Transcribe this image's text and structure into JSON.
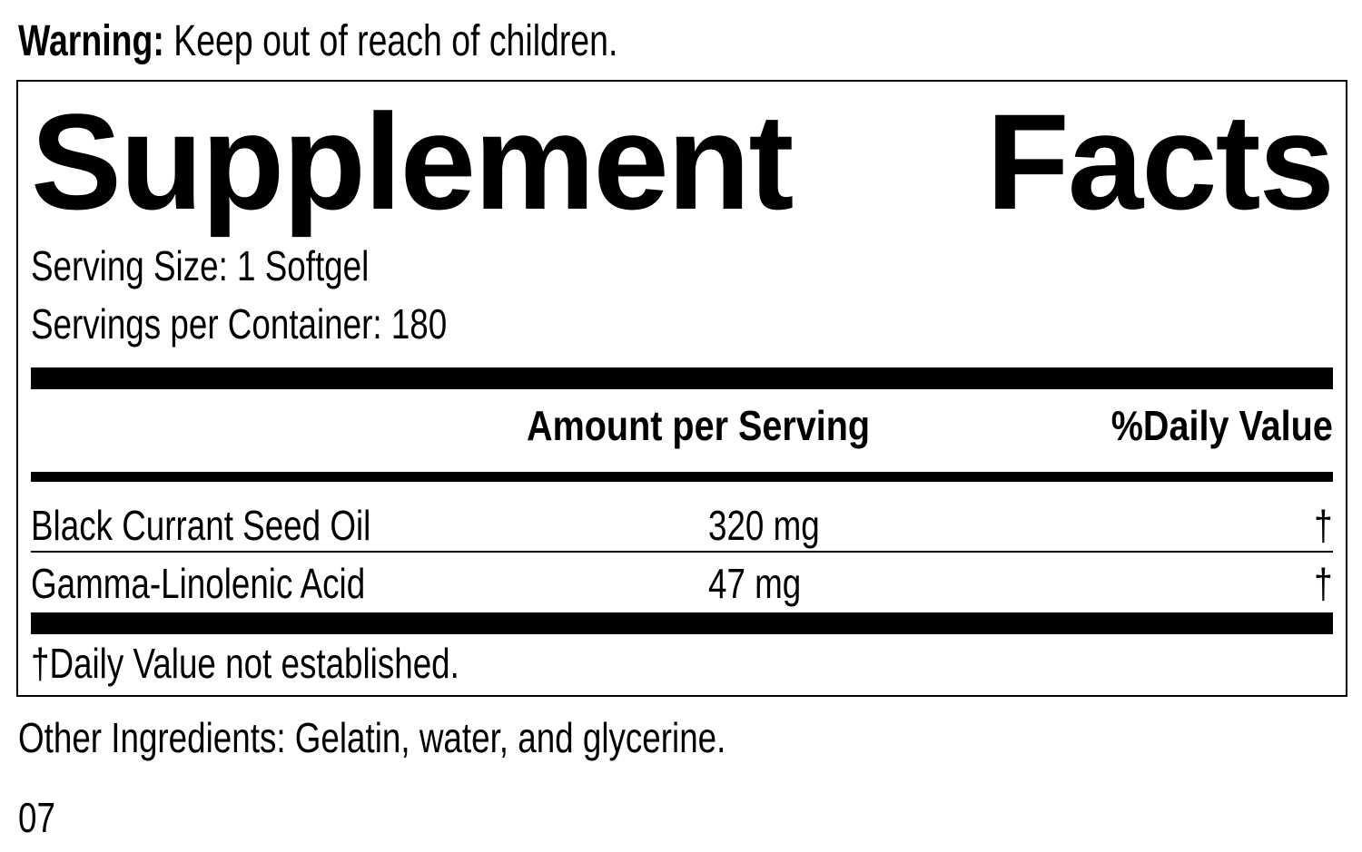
{
  "warning": {
    "label": "Warning:",
    "text": " Keep out of reach of children."
  },
  "title": {
    "word1": "Supplement",
    "word2": "Facts"
  },
  "serving_size": "Serving Size: 1 Softgel",
  "servings_per_container": "Servings per Container: 180",
  "headers": {
    "amount": "Amount per Serving",
    "dv": "%Daily Value"
  },
  "rows": [
    {
      "name": "Black Currant Seed Oil",
      "amount": "320 mg",
      "dv": "†"
    },
    {
      "name": "Gamma-Linolenic Acid",
      "amount": "47 mg",
      "dv": "†"
    }
  ],
  "footnote": "†Daily Value not established.",
  "other_ingredients": "Other Ingredients: Gelatin, water, and glycerine.",
  "code": "07"
}
